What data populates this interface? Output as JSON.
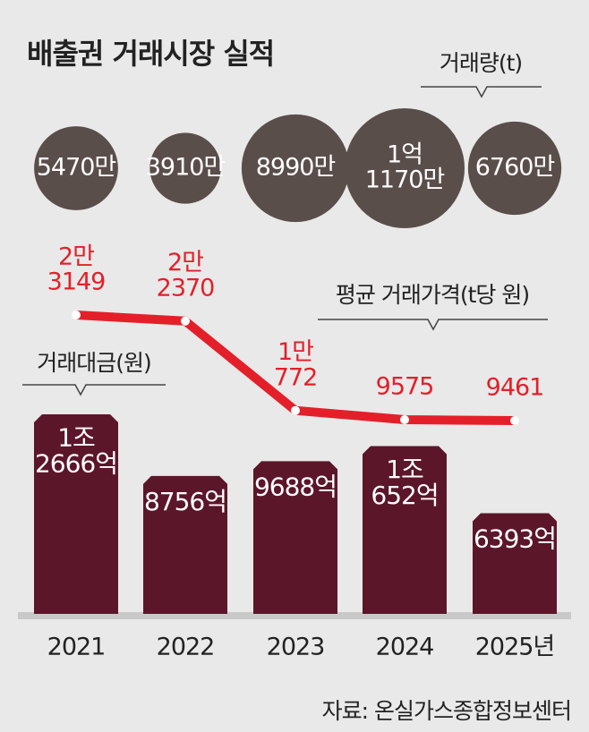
{
  "chart_data": {
    "type": "combo",
    "title": "배출권 거래시장 실적",
    "categories": [
      "2021",
      "2022",
      "2023",
      "2024",
      "2025년"
    ],
    "series": [
      {
        "name": "거래량(t)",
        "type": "bubble",
        "color": "#5a4e4b",
        "values": [
          54700000,
          39100000,
          89900000,
          111700000,
          67600000
        ],
        "value_labels": [
          "5470만",
          "3910만",
          "8990만",
          [
            "1억",
            "1170만"
          ],
          "6760만"
        ]
      },
      {
        "name": "평균 거래가격(t당 원)",
        "type": "line",
        "color": "#e3202a",
        "values": [
          23149,
          22370,
          10772,
          9575,
          9461
        ],
        "value_labels": [
          [
            "2만",
            "3149"
          ],
          [
            "2만",
            "2370"
          ],
          [
            "1만",
            "772"
          ],
          "9575",
          "9461"
        ]
      },
      {
        "name": "거래대금(원)",
        "type": "bar",
        "color": "#5c1629",
        "values": [
          1266600000000,
          875600000000,
          968800000000,
          1065200000000,
          639300000000
        ],
        "value_labels": [
          [
            "1조",
            "2666억"
          ],
          "8756억",
          "9688억",
          [
            "1조",
            "652억"
          ],
          "6393억"
        ]
      }
    ],
    "source": "자료: 온실가스종합정보센터"
  }
}
